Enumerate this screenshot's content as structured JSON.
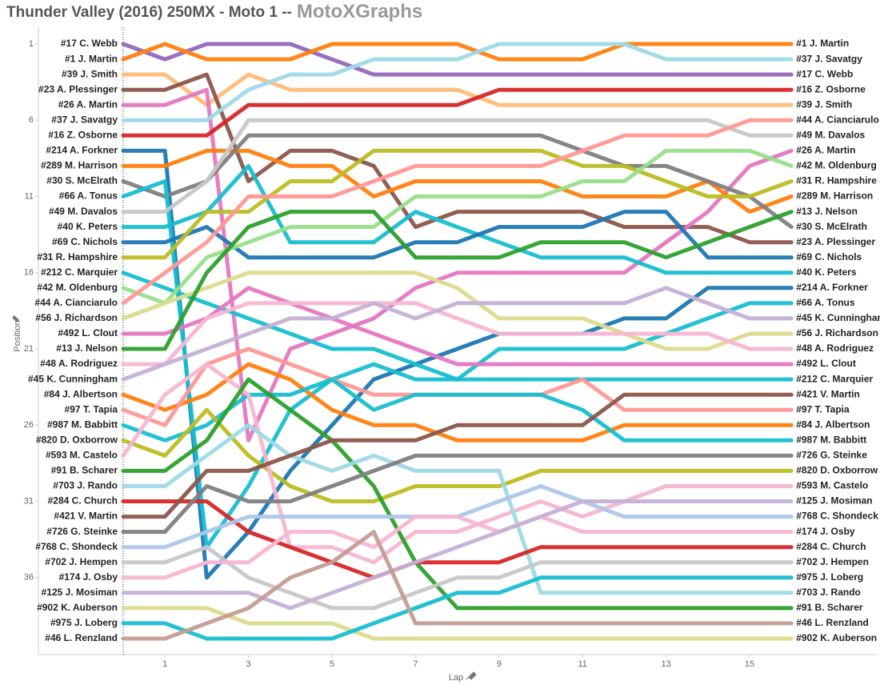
{
  "chart_data": {
    "type": "line",
    "title": "Thunder Valley (2016) 250MX - Moto 1 --",
    "brand": "MotoXGraphs",
    "x_label": "Lap",
    "y_label": "Position",
    "x": [
      0,
      1,
      2,
      3,
      4,
      5,
      6,
      7,
      8,
      9,
      10,
      11,
      12,
      13,
      14,
      15,
      16
    ],
    "xlim": [
      -2,
      18
    ],
    "xticks": [
      1,
      3,
      5,
      7,
      9,
      11,
      13,
      15
    ],
    "ylim": [
      0,
      41
    ],
    "yticks": [
      1,
      6,
      11,
      16,
      21,
      26,
      31,
      36
    ],
    "y_inverted": true,
    "start_line_x": 0,
    "series": [
      {
        "name": "#17 C. Webb",
        "color": "#9467bd",
        "values": [
          1,
          2,
          1,
          1,
          1,
          2,
          3,
          3,
          3,
          3,
          3,
          3,
          3,
          3,
          3,
          3,
          3
        ]
      },
      {
        "name": "#1 J. Martin",
        "color": "#ff7f0e",
        "values": [
          2,
          1,
          2,
          2,
          2,
          1,
          1,
          1,
          1,
          2,
          2,
          2,
          1,
          1,
          1,
          1,
          1
        ]
      },
      {
        "name": "#39 J. Smith",
        "color": "#ffbb78",
        "values": [
          3,
          3,
          5,
          3,
          4,
          4,
          4,
          4,
          4,
          5,
          5,
          5,
          5,
          5,
          5,
          5,
          5
        ]
      },
      {
        "name": "#23 A. Plessinger",
        "color": "#8c564b",
        "values": [
          4,
          4,
          3,
          10,
          8,
          8,
          9,
          13,
          12,
          12,
          12,
          12,
          13,
          13,
          13,
          14,
          14
        ]
      },
      {
        "name": "#26 A. Martin",
        "color": "#e377c2",
        "values": [
          5,
          5,
          4,
          27,
          21,
          20,
          19,
          17,
          16,
          16,
          16,
          16,
          16,
          14,
          12,
          9,
          8
        ]
      },
      {
        "name": "#37 J. Savatgy",
        "color": "#9edae5",
        "values": [
          6,
          6,
          6,
          4,
          3,
          3,
          2,
          2,
          2,
          1,
          1,
          1,
          1,
          2,
          2,
          2,
          2
        ]
      },
      {
        "name": "#16 Z. Osborne",
        "color": "#d62728",
        "values": [
          7,
          7,
          7,
          5,
          5,
          5,
          5,
          5,
          5,
          4,
          4,
          4,
          4,
          4,
          4,
          4,
          4
        ]
      },
      {
        "name": "#214 A. Forkner",
        "color": "#1f77b4",
        "values": [
          8,
          8,
          36,
          33,
          29,
          26,
          23,
          22,
          21,
          20,
          20,
          20,
          19,
          19,
          17,
          17,
          17
        ]
      },
      {
        "name": "#289 M. Harrison",
        "color": "#ff7f0e",
        "values": [
          9,
          9,
          8,
          8,
          9,
          9,
          11,
          10,
          10,
          10,
          10,
          11,
          11,
          11,
          10,
          12,
          11
        ]
      },
      {
        "name": "#30 S. McElrath",
        "color": "#7f7f7f",
        "values": [
          10,
          11,
          10,
          7,
          7,
          7,
          7,
          7,
          7,
          7,
          7,
          8,
          9,
          9,
          10,
          11,
          13
        ]
      },
      {
        "name": "#66 A. Tonus",
        "color": "#17becf",
        "values": [
          11,
          10,
          34,
          30,
          25,
          23,
          22,
          23,
          23,
          21,
          21,
          21,
          21,
          20,
          19,
          18,
          18
        ]
      },
      {
        "name": "#49 M. Davalos",
        "color": "#c7c7c7",
        "values": [
          12,
          12,
          10,
          6,
          6,
          6,
          6,
          6,
          6,
          6,
          6,
          6,
          6,
          6,
          6,
          7,
          7
        ]
      },
      {
        "name": "#40 K. Peters",
        "color": "#17becf",
        "values": [
          13,
          13,
          12,
          9,
          14,
          14,
          14,
          12,
          13,
          14,
          15,
          15,
          15,
          16,
          16,
          16,
          16
        ]
      },
      {
        "name": "#69 C. Nichols",
        "color": "#1f77b4",
        "values": [
          14,
          14,
          13,
          15,
          15,
          15,
          15,
          14,
          14,
          13,
          13,
          13,
          12,
          12,
          15,
          15,
          15
        ]
      },
      {
        "name": "#31 R. Hampshire",
        "color": "#bcbd22",
        "values": [
          15,
          15,
          12,
          12,
          10,
          10,
          8,
          8,
          8,
          8,
          8,
          9,
          9,
          10,
          11,
          11,
          10
        ]
      },
      {
        "name": "#212 C. Marquier",
        "color": "#17becf",
        "values": [
          16,
          17,
          18,
          19,
          20,
          21,
          21,
          22,
          23,
          23,
          23,
          23,
          23,
          23,
          23,
          23,
          23
        ]
      },
      {
        "name": "#42 M. Oldenburg",
        "color": "#98df8a",
        "values": [
          17,
          18,
          15,
          14,
          13,
          13,
          13,
          11,
          11,
          11,
          11,
          10,
          10,
          8,
          8,
          8,
          9
        ]
      },
      {
        "name": "#44 A. Cianciarulo",
        "color": "#ff9896",
        "values": [
          18,
          16,
          14,
          11,
          11,
          11,
          10,
          9,
          9,
          9,
          9,
          8,
          7,
          7,
          7,
          6,
          6
        ]
      },
      {
        "name": "#56 J. Richardson",
        "color": "#dbdb8d",
        "values": [
          19,
          18,
          17,
          16,
          16,
          16,
          16,
          16,
          17,
          19,
          19,
          19,
          20,
          21,
          21,
          20,
          20
        ]
      },
      {
        "name": "#492 L. Clout",
        "color": "#e377c2",
        "values": [
          20,
          20,
          19,
          17,
          18,
          19,
          20,
          21,
          22,
          22,
          22,
          22,
          22,
          22,
          22,
          22,
          22
        ]
      },
      {
        "name": "#13 J. Nelson",
        "color": "#2ca02c",
        "values": [
          21,
          21,
          16,
          13,
          12,
          12,
          12,
          15,
          15,
          15,
          14,
          14,
          14,
          15,
          14,
          13,
          12
        ]
      },
      {
        "name": "#48 A. Rodriguez",
        "color": "#f7b6d2",
        "values": [
          22,
          22,
          19,
          18,
          18,
          18,
          18,
          18,
          19,
          20,
          20,
          20,
          20,
          20,
          20,
          21,
          21
        ]
      },
      {
        "name": "#45 K. Cunningham",
        "color": "#c5b0d5",
        "values": [
          23,
          22,
          21,
          20,
          19,
          19,
          18,
          19,
          18,
          18,
          18,
          18,
          18,
          17,
          18,
          19,
          19
        ]
      },
      {
        "name": "#84 J. Albertson",
        "color": "#ff7f0e",
        "values": [
          24,
          25,
          24,
          22,
          23,
          25,
          26,
          26,
          27,
          27,
          27,
          27,
          26,
          26,
          26,
          26,
          26
        ]
      },
      {
        "name": "#97 T. Tapia",
        "color": "#ff9896",
        "values": [
          25,
          26,
          22,
          21,
          22,
          23,
          24,
          24,
          24,
          24,
          24,
          23,
          25,
          25,
          25,
          25,
          25
        ]
      },
      {
        "name": "#987 M. Babbitt",
        "color": "#17becf",
        "values": [
          26,
          27,
          26,
          24,
          24,
          23,
          25,
          24,
          24,
          24,
          24,
          25,
          27,
          27,
          27,
          27,
          27
        ]
      },
      {
        "name": "#820 D. Oxborrow",
        "color": "#bcbd22",
        "values": [
          27,
          28,
          25,
          28,
          30,
          31,
          31,
          30,
          30,
          30,
          29,
          29,
          29,
          29,
          29,
          29,
          29
        ]
      },
      {
        "name": "#593 M. Castelo",
        "color": "#f7b6d2",
        "values": [
          28,
          24,
          22,
          24,
          34,
          34,
          35,
          33,
          33,
          32,
          31,
          32,
          31,
          30,
          30,
          30,
          30
        ]
      },
      {
        "name": "#91 B. Scharer",
        "color": "#2ca02c",
        "values": [
          29,
          29,
          27,
          23,
          25,
          27,
          30,
          35,
          38,
          38,
          38,
          38,
          38,
          38,
          38,
          38,
          38
        ]
      },
      {
        "name": "#703 J. Rando",
        "color": "#9edae5",
        "values": [
          30,
          30,
          28,
          26,
          28,
          29,
          28,
          29,
          29,
          29,
          37,
          37,
          37,
          37,
          37,
          37,
          37
        ]
      },
      {
        "name": "#284 C. Church",
        "color": "#d62728",
        "values": [
          31,
          31,
          31,
          33,
          34,
          35,
          36,
          35,
          35,
          35,
          34,
          34,
          34,
          34,
          34,
          34,
          34
        ]
      },
      {
        "name": "#421 V. Martin",
        "color": "#8c564b",
        "values": [
          32,
          32,
          29,
          29,
          28,
          27,
          27,
          27,
          26,
          26,
          26,
          26,
          24,
          24,
          24,
          24,
          24
        ]
      },
      {
        "name": "#726 G. Steinke",
        "color": "#7f7f7f",
        "values": [
          33,
          33,
          30,
          31,
          31,
          30,
          29,
          28,
          28,
          28,
          28,
          28,
          28,
          28,
          28,
          28,
          28
        ]
      },
      {
        "name": "#768 C. Shondeck",
        "color": "#aec7e8",
        "values": [
          34,
          34,
          33,
          32,
          32,
          32,
          32,
          32,
          32,
          31,
          30,
          31,
          32,
          32,
          32,
          32,
          32
        ]
      },
      {
        "name": "#702 J. Hempen",
        "color": "#c7c7c7",
        "values": [
          35,
          35,
          34,
          36,
          37,
          38,
          38,
          37,
          36,
          36,
          35,
          35,
          35,
          35,
          35,
          35,
          35
        ]
      },
      {
        "name": "#174 J. Osby",
        "color": "#f7b6d2",
        "values": [
          36,
          36,
          35,
          35,
          33,
          33,
          34,
          32,
          32,
          33,
          32,
          33,
          33,
          33,
          33,
          33,
          33
        ]
      },
      {
        "name": "#125 J. Mosiman",
        "color": "#c5b0d5",
        "values": [
          37,
          37,
          37,
          37,
          38,
          37,
          36,
          35,
          34,
          33,
          32,
          31,
          31,
          31,
          31,
          31,
          31
        ]
      },
      {
        "name": "#902 K. Auberson",
        "color": "#dbdb8d",
        "values": [
          38,
          38,
          38,
          39,
          39,
          39,
          40,
          40,
          40,
          40,
          40,
          40,
          40,
          40,
          40,
          40,
          40
        ]
      },
      {
        "name": "#975 J. Loberg",
        "color": "#17becf",
        "values": [
          39,
          39,
          40,
          40,
          40,
          40,
          39,
          38,
          37,
          37,
          36,
          36,
          36,
          36,
          36,
          36,
          36
        ]
      },
      {
        "name": "#46 L. Renzland",
        "color": "#c49c94",
        "values": [
          40,
          40,
          39,
          38,
          36,
          35,
          33,
          39,
          39,
          39,
          39,
          39,
          39,
          39,
          39,
          39,
          39
        ]
      }
    ]
  }
}
